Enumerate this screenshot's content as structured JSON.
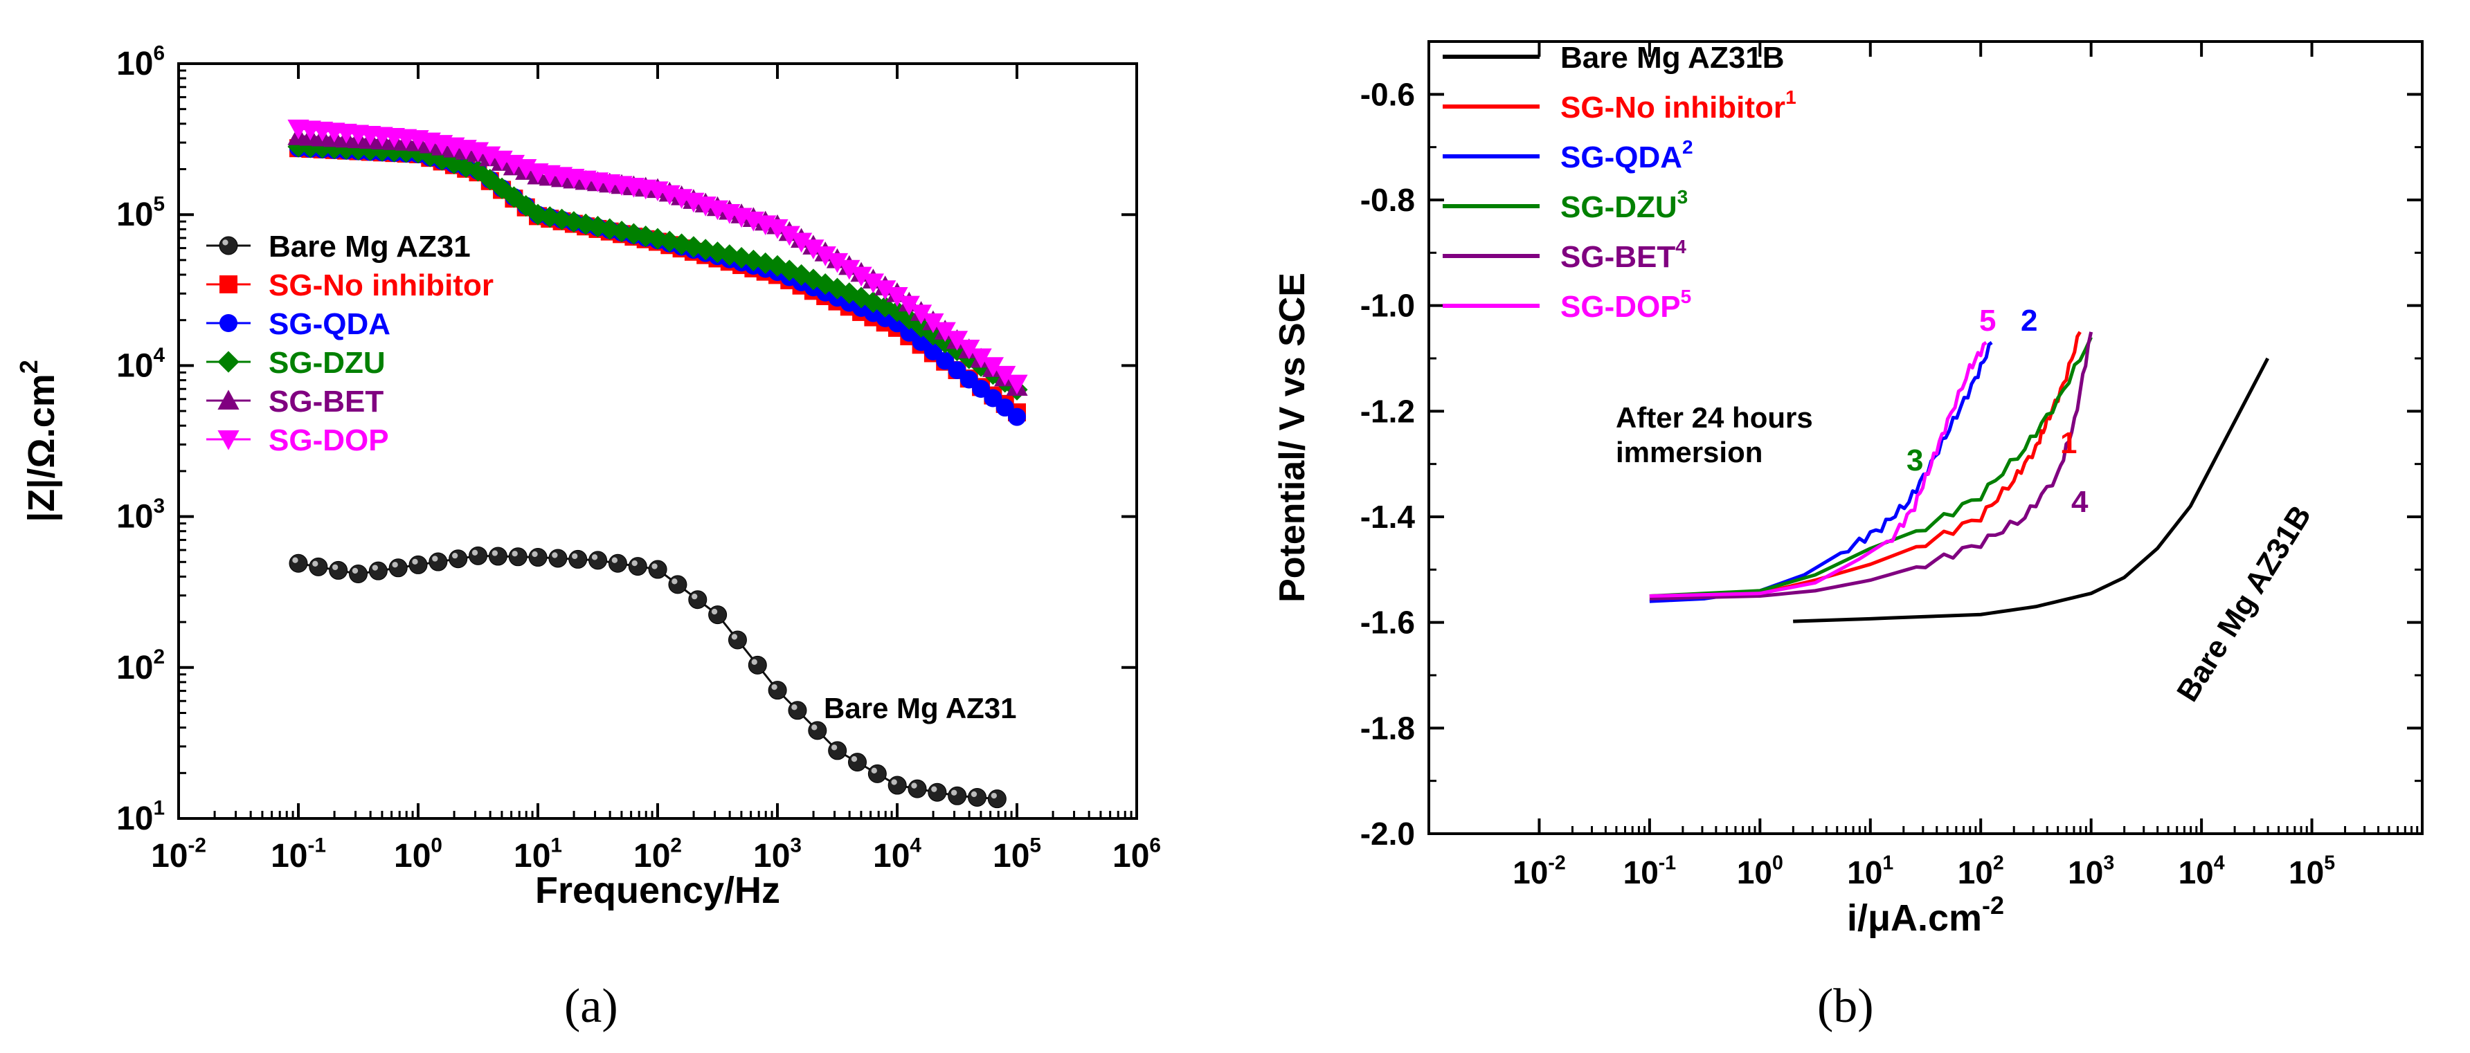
{
  "captions": {
    "a": "(a)",
    "b": "(b)"
  },
  "chart_data": [
    {
      "id": "a",
      "type": "scatter",
      "title": "",
      "xlabel": "Frequency/Hz",
      "ylabel": "|Z|/Ω.cm",
      "ylabel_sup": "2",
      "xscale": "log",
      "yscale": "log",
      "xlim_exp": [
        -2,
        6
      ],
      "ylim_exp": [
        1,
        6
      ],
      "x_tick_labels": [
        {
          "base": "10",
          "exp": "-2"
        },
        {
          "base": "10",
          "exp": "-1"
        },
        {
          "base": "10",
          "exp": "0"
        },
        {
          "base": "10",
          "exp": "1"
        },
        {
          "base": "10",
          "exp": "2"
        },
        {
          "base": "10",
          "exp": "3"
        },
        {
          "base": "10",
          "exp": "4"
        },
        {
          "base": "10",
          "exp": "5"
        },
        {
          "base": "10",
          "exp": "6"
        }
      ],
      "y_tick_labels": [
        {
          "base": "10",
          "exp": "1"
        },
        {
          "base": "10",
          "exp": "2"
        },
        {
          "base": "10",
          "exp": "3"
        },
        {
          "base": "10",
          "exp": "4"
        },
        {
          "base": "10",
          "exp": "5"
        },
        {
          "base": "10",
          "exp": "6"
        }
      ],
      "legend_position": "middle-left",
      "annotation": "Bare Mg AZ31",
      "series": [
        {
          "name": "Bare Mg AZ31",
          "color": "#111111",
          "marker": "sphere",
          "points": [
            [
              -1,
              2.69
            ],
            [
              -0.5,
              2.62
            ],
            [
              0,
              2.68
            ],
            [
              0.5,
              2.74
            ],
            [
              1,
              2.73
            ],
            [
              1.5,
              2.71
            ],
            [
              2,
              2.65
            ],
            [
              2.5,
              2.35
            ],
            [
              3,
              1.85
            ],
            [
              3.5,
              1.45
            ],
            [
              4,
              1.22
            ],
            [
              4.5,
              1.15
            ],
            [
              5,
              1.12
            ]
          ]
        },
        {
          "name": "SG-No inhibitor",
          "color": "#ff0000",
          "marker": "square",
          "points": [
            [
              -1,
              5.44
            ],
            [
              0,
              5.4
            ],
            [
              0.5,
              5.28
            ],
            [
              1,
              4.99
            ],
            [
              2,
              4.82
            ],
            [
              3,
              4.6
            ],
            [
              4,
              4.25
            ],
            [
              5,
              3.69
            ]
          ]
        },
        {
          "name": "SG-QDA",
          "color": "#0000ff",
          "marker": "circle",
          "points": [
            [
              -1,
              5.44
            ],
            [
              0,
              5.4
            ],
            [
              0.5,
              5.29
            ],
            [
              1,
              5.0
            ],
            [
              2,
              4.83
            ],
            [
              3,
              4.62
            ],
            [
              4,
              4.28
            ],
            [
              5,
              3.66
            ]
          ]
        },
        {
          "name": "SG-DZU",
          "color": "#008000",
          "marker": "diamond",
          "points": [
            [
              -1,
              5.45
            ],
            [
              0,
              5.41
            ],
            [
              0.5,
              5.29
            ],
            [
              1,
              5.0
            ],
            [
              2,
              4.84
            ],
            [
              3,
              4.66
            ],
            [
              4,
              4.36
            ],
            [
              5,
              3.84
            ]
          ]
        },
        {
          "name": "SG-BET",
          "color": "#800080",
          "marker": "triangle-up",
          "points": [
            [
              -1,
              5.52
            ],
            [
              0,
              5.48
            ],
            [
              0.5,
              5.41
            ],
            [
              1,
              5.26
            ],
            [
              2,
              5.17
            ],
            [
              3,
              4.93
            ],
            [
              4,
              4.48
            ],
            [
              5,
              3.86
            ]
          ]
        },
        {
          "name": "SG-DOP",
          "color": "#ff00ff",
          "marker": "triangle-down",
          "points": [
            [
              -1,
              5.57
            ],
            [
              0,
              5.5
            ],
            [
              0.5,
              5.42
            ],
            [
              1,
              5.28
            ],
            [
              2,
              5.16
            ],
            [
              3,
              4.91
            ],
            [
              4,
              4.46
            ],
            [
              5,
              3.88
            ]
          ]
        }
      ]
    },
    {
      "id": "b",
      "type": "line",
      "title": "",
      "xlabel": "i/μA.cm",
      "xlabel_sup": "-2",
      "ylabel": "Potential/ V vs SCE",
      "xscale": "log",
      "xlim_exp": [
        -3,
        6
      ],
      "ylim": [
        -2.0,
        -0.5
      ],
      "x_tick_labels": [
        {
          "base": "10",
          "exp": "-2"
        },
        {
          "base": "10",
          "exp": "-1"
        },
        {
          "base": "10",
          "exp": "0"
        },
        {
          "base": "10",
          "exp": "1"
        },
        {
          "base": "10",
          "exp": "2"
        },
        {
          "base": "10",
          "exp": "3"
        },
        {
          "base": "10",
          "exp": "4"
        },
        {
          "base": "10",
          "exp": "5"
        }
      ],
      "y_tick_labels": [
        "-0.6",
        "-0.8",
        "-1.0",
        "-1.2",
        "-1.4",
        "-1.6",
        "-1.8",
        "-2.0"
      ],
      "legend_position": "top-left",
      "annotations": {
        "immersion_line1": "After 24 hours",
        "immersion_line2": "immersion",
        "bare_label": "Bare Mg AZ31B",
        "curve_numbers": [
          "1",
          "2",
          "3",
          "4",
          "5"
        ]
      },
      "series": [
        {
          "name": "Bare Mg AZ31B",
          "sup": "",
          "color": "#000000",
          "points": [
            [
              0.3,
              -1.598
            ],
            [
              1,
              -1.593
            ],
            [
              2,
              -1.585
            ],
            [
              2.5,
              -1.57
            ],
            [
              3,
              -1.545
            ],
            [
              3.3,
              -1.515
            ],
            [
              3.6,
              -1.46
            ],
            [
              3.9,
              -1.38
            ],
            [
              4.2,
              -1.26
            ],
            [
              4.6,
              -1.1
            ]
          ]
        },
        {
          "name": "SG-No inhibitor",
          "sup": "1",
          "color": "#ff0000",
          "points": [
            [
              -1,
              -1.55
            ],
            [
              0,
              -1.545
            ],
            [
              0.5,
              -1.52
            ],
            [
              1,
              -1.49
            ],
            [
              1.5,
              -1.45
            ],
            [
              2,
              -1.4
            ],
            [
              2.3,
              -1.33
            ],
            [
              2.5,
              -1.27
            ],
            [
              2.6,
              -1.22
            ],
            [
              2.75,
              -1.15
            ],
            [
              2.9,
              -1.05
            ]
          ]
        },
        {
          "name": "SG-QDA",
          "sup": "2",
          "color": "#0000ff",
          "points": [
            [
              -1,
              -1.56
            ],
            [
              -0.5,
              -1.555
            ],
            [
              0,
              -1.54
            ],
            [
              0.4,
              -1.51
            ],
            [
              0.8,
              -1.46
            ],
            [
              1.1,
              -1.42
            ],
            [
              1.35,
              -1.37
            ],
            [
              1.55,
              -1.3
            ],
            [
              1.75,
              -1.22
            ],
            [
              1.95,
              -1.14
            ],
            [
              2.1,
              -1.07
            ]
          ]
        },
        {
          "name": "SG-DZU",
          "sup": "3",
          "color": "#008000",
          "points": [
            [
              -1,
              -1.55
            ],
            [
              0,
              -1.54
            ],
            [
              0.5,
              -1.51
            ],
            [
              1,
              -1.46
            ],
            [
              1.5,
              -1.42
            ],
            [
              2,
              -1.36
            ],
            [
              2.4,
              -1.27
            ],
            [
              2.7,
              -1.18
            ],
            [
              3,
              -1.06
            ]
          ]
        },
        {
          "name": "SG-BET",
          "sup": "4",
          "color": "#800080",
          "points": [
            [
              -1,
              -1.555
            ],
            [
              0,
              -1.55
            ],
            [
              0.5,
              -1.54
            ],
            [
              1,
              -1.52
            ],
            [
              1.5,
              -1.49
            ],
            [
              2,
              -1.45
            ],
            [
              2.4,
              -1.4
            ],
            [
              2.7,
              -1.32
            ],
            [
              2.85,
              -1.22
            ],
            [
              3,
              -1.05
            ]
          ]
        },
        {
          "name": "SG-DOP",
          "sup": "5",
          "color": "#ff00ff",
          "points": [
            [
              -1,
              -1.55
            ],
            [
              0,
              -1.545
            ],
            [
              0.5,
              -1.525
            ],
            [
              0.9,
              -1.48
            ],
            [
              1.2,
              -1.44
            ],
            [
              1.4,
              -1.38
            ],
            [
              1.55,
              -1.3
            ],
            [
              1.7,
              -1.22
            ],
            [
              1.9,
              -1.12
            ],
            [
              2.05,
              -1.07
            ]
          ]
        }
      ]
    }
  ]
}
